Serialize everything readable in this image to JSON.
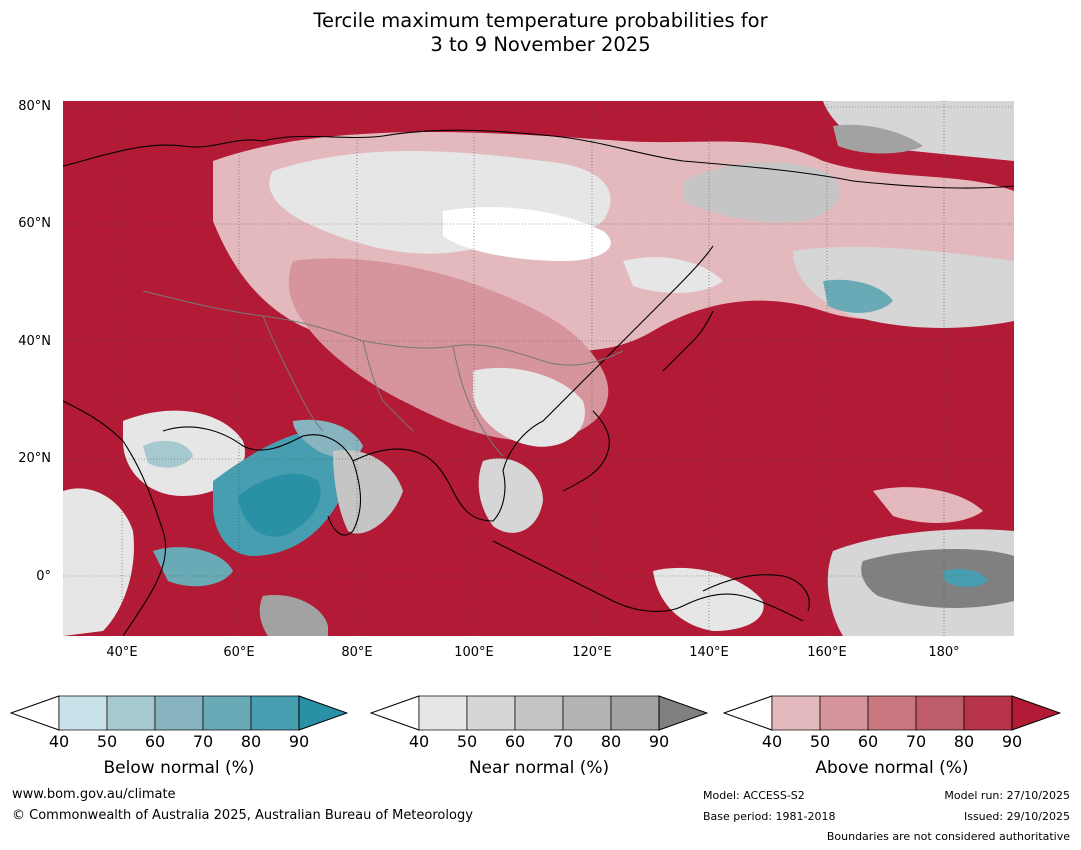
{
  "title": {
    "line1": "Tercile maximum temperature probabilities for",
    "line2": "3 to 9 November 2025"
  },
  "map": {
    "lat_labels": [
      "80°N",
      "60°N",
      "40°N",
      "20°N",
      "0°"
    ],
    "lon_labels": [
      "40°E",
      "60°E",
      "80°E",
      "100°E",
      "120°E",
      "140°E",
      "160°E",
      "180°"
    ]
  },
  "legends": [
    {
      "title": "Below normal (%)",
      "ticks": [
        "40",
        "50",
        "60",
        "70",
        "80",
        "90"
      ],
      "colors": [
        "#c9e2e9",
        "#a6c8cf",
        "#88b4c0",
        "#6aaab7",
        "#479eb0",
        "#2a90a6"
      ]
    },
    {
      "title": "Near normal (%)",
      "ticks": [
        "40",
        "50",
        "60",
        "70",
        "80",
        "90"
      ],
      "colors": [
        "#e6e6e6",
        "#d6d6d6",
        "#c5c5c5",
        "#b4b4b4",
        "#a2a2a2",
        "#808080"
      ]
    },
    {
      "title": "Above normal (%)",
      "ticks": [
        "40",
        "50",
        "60",
        "70",
        "80",
        "90"
      ],
      "colors": [
        "#e3b9bd",
        "#d6959c",
        "#c97880",
        "#bf5c69",
        "#b73347",
        "#b21a35"
      ]
    }
  ],
  "footer": {
    "website": "www.bom.gov.au/climate",
    "copyright": "© Commonwealth of Australia 2025, Australian Bureau of Meteorology",
    "model": "Model: ACCESS-S2",
    "base_period": "Base period: 1981-2018",
    "model_run": "Model run: 27/10/2025",
    "issued": "Issued: 29/10/2025",
    "disclaimer": "Boundaries are not considered authoritative"
  },
  "colors": {
    "above_dark": "#b21a35",
    "near_light": "#e6e6e6",
    "below_mid": "#479eb0"
  }
}
